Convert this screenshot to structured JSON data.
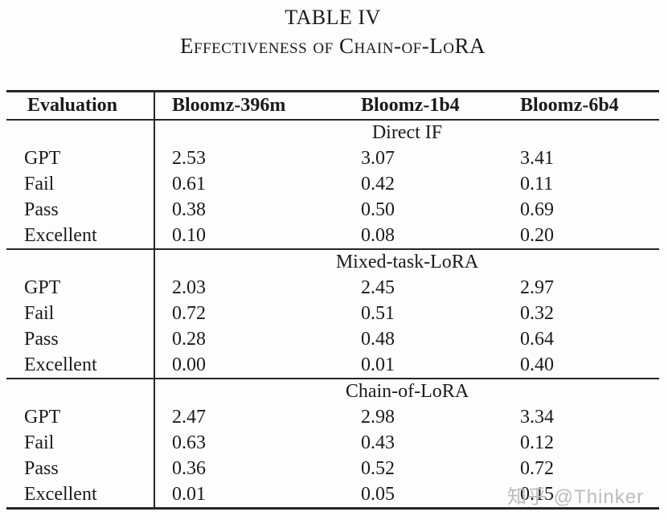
{
  "caption": {
    "number": "TABLE IV",
    "subtitle": "Effectiveness of Chain-of-LoRA"
  },
  "watermark": "知乎 @Thinker",
  "table": {
    "columns": [
      "Evaluation",
      "Bloomz-396m",
      "Bloomz-1b4",
      "Bloomz-6b4"
    ],
    "sections": [
      {
        "name": "Direct IF",
        "rows": [
          {
            "label": "GPT",
            "values": [
              "2.53",
              "3.07",
              "3.41"
            ]
          },
          {
            "label": "Fail",
            "values": [
              "0.61",
              "0.42",
              "0.11"
            ]
          },
          {
            "label": "Pass",
            "values": [
              "0.38",
              "0.50",
              "0.69"
            ]
          },
          {
            "label": "Excellent",
            "values": [
              "0.10",
              "0.08",
              "0.20"
            ]
          }
        ]
      },
      {
        "name": "Mixed-task-LoRA",
        "rows": [
          {
            "label": "GPT",
            "values": [
              "2.03",
              "2.45",
              "2.97"
            ]
          },
          {
            "label": "Fail",
            "values": [
              "0.72",
              "0.51",
              "0.32"
            ]
          },
          {
            "label": "Pass",
            "values": [
              "0.28",
              "0.48",
              "0.64"
            ]
          },
          {
            "label": "Excellent",
            "values": [
              "0.00",
              "0.01",
              "0.40"
            ]
          }
        ]
      },
      {
        "name": "Chain-of-LoRA",
        "rows": [
          {
            "label": "GPT",
            "values": [
              "2.47",
              "2.98",
              "3.34"
            ]
          },
          {
            "label": "Fail",
            "values": [
              "0.63",
              "0.43",
              "0.12"
            ]
          },
          {
            "label": "Pass",
            "values": [
              "0.36",
              "0.52",
              "0.72"
            ]
          },
          {
            "label": "Excellent",
            "values": [
              "0.01",
              "0.05",
              "0.15"
            ]
          }
        ]
      }
    ]
  },
  "colors": {
    "text": "#1b1b1b",
    "rule": "#262626",
    "watermark": "#bcbcbc",
    "background": "#fdfdfd"
  }
}
